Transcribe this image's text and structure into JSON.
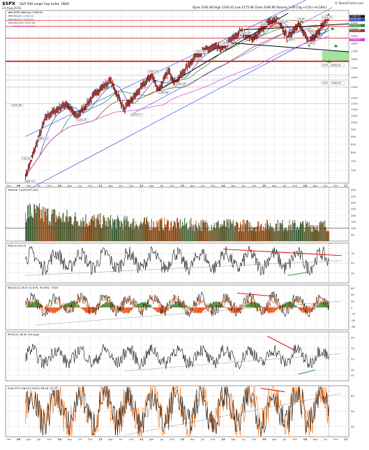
{
  "header": {
    "symbol": "$SPX",
    "name": "S&P 500 Large Cap Index",
    "exchange": "INDX",
    "date": "23-Aug-2016",
    "ohlc": "Open 2181.60  High 2193.42  Low 2175.96  Close 2186.90  Volume 3.7B  Chg +4.03 (+0.18%)",
    "brand": "© StockCharts.com"
  },
  "price_panel": {
    "legend": [
      {
        "label": "$SPX (Weekly) 2186.90",
        "color": "#000000"
      },
      {
        "label": "MA(20) 2150.40",
        "color": "#1f3fbf"
      },
      {
        "label": "MA(50) 2076.64",
        "color": "#2a8a2a"
      },
      {
        "label": "MA(100) 2015.48",
        "color": "#8b3a3a"
      },
      {
        "label": "MA(200) 1898.86",
        "color": "#d040d0"
      }
    ],
    "annotations": [
      "666.79",
      "741.02",
      "1101.60",
      "869.32",
      "1039.75",
      "1074.77",
      "1422.38",
      "1267.64",
      "1343.35",
      "1552",
      "1627.80",
      "1737.92",
      "1904.59",
      "2040",
      "2079.46",
      "1867",
      "1810",
      "1991",
      "2116",
      "2134.72",
      "1575 - 1600.00",
      "1370 - 1380.00"
    ],
    "right_ticks": [
      "2200",
      "2100",
      "2000",
      "1900",
      "1800",
      "1700",
      "1600",
      "1500",
      "1400",
      "1300",
      "1200",
      "1150",
      "1100",
      "1050",
      "1000",
      "950",
      "900",
      "850",
      "800",
      "750",
      "700"
    ],
    "price_labels": [
      {
        "label": "2186.90",
        "color": "#111111"
      },
      {
        "label": "2150.40",
        "color": "#1f3fbf"
      },
      {
        "label": "2076.64",
        "color": "#2a8a2a"
      },
      {
        "label": "2015.48",
        "color": "#8b3a3a"
      },
      {
        "label": "1898.86",
        "color": "#d040d0"
      }
    ]
  },
  "x_axis": {
    "labels": [
      "Oct",
      "09",
      "Apr",
      "Jul",
      "Oct",
      "10",
      "Apr",
      "Jul",
      "Oct",
      "11",
      "Apr",
      "Jul",
      "Oct",
      "12",
      "Apr",
      "Jul",
      "Oct",
      "13",
      "Apr",
      "Jul",
      "Oct",
      "14",
      "Apr",
      "Jul",
      "Oct",
      "15",
      "Apr",
      "Jul",
      "Oct",
      "16",
      "Apr",
      "Jul",
      "Oct",
      "17"
    ]
  },
  "volume_panel": {
    "label": "Volume 3,429,951,440",
    "right_ticks": [
      "400",
      "350",
      "300",
      "250",
      "200",
      "150",
      "100",
      "50"
    ]
  },
  "rsi_panel": {
    "label": "RSI(14) 64.03",
    "right_ticks": [
      "70",
      "50",
      "30"
    ],
    "value": "64.03"
  },
  "macd_panel": {
    "label": "MACD(12,26,9) 42.876, 35.060, 7.816",
    "right_ticks": [
      "60",
      "40",
      "20",
      "0",
      "-20",
      "-40",
      "-60"
    ],
    "value_labels": [
      "42.876",
      "35.060",
      "7.816"
    ]
  },
  "ppo_panel": {
    "label": "PPO(14) 76.40 (19 Aug)",
    "right_ticks": [
      "90",
      "70",
      "50",
      "30",
      "20"
    ],
    "value": "76.40"
  },
  "stoch_panel": {
    "label": "Slow STO %K(14) %D(3) 96.48, 97.07",
    "right_ticks": [
      "80",
      "50",
      "20"
    ],
    "value": "96.48"
  },
  "colors": {
    "price_line": "#111111",
    "vol_up": "#2f5a2f",
    "vol_down": "#e85a22",
    "trend_red": "#d40000",
    "trend_green": "#2a8a2a",
    "trend_blue": "#2244cc",
    "support_green": "#8ee08e",
    "channel_blue": "#3355dd",
    "macd_hist": "#4a8a3a",
    "stoch_fill": "#ff6b00"
  },
  "chart_data": {
    "type": "line",
    "title": "$SPX S&P 500 Large Cap Index INDX",
    "x": [
      "2009-03",
      "2009-09",
      "2010-03",
      "2010-06",
      "2010-12",
      "2011-04",
      "2011-08",
      "2011-12",
      "2012-04",
      "2012-06",
      "2012-09",
      "2012-11",
      "2013-05",
      "2013-10",
      "2014-01",
      "2014-06",
      "2014-10",
      "2015-02",
      "2015-05",
      "2015-08",
      "2015-11",
      "2016-02",
      "2016-06",
      "2016-08"
    ],
    "series": [
      {
        "name": "$SPX (Weekly)",
        "values": [
          666.79,
          1040,
          1150,
          1039.75,
          1257,
          1363,
          1101,
          1255,
          1422,
          1267,
          1465,
          1343,
          1650,
          1745,
          1740,
          1960,
          1862,
          2100,
          2134.72,
          1867,
          2090,
          1810,
          2040,
          2186.9
        ]
      }
    ],
    "ylim": [
      650,
      2250
    ],
    "log_scale": true,
    "grid": true
  }
}
